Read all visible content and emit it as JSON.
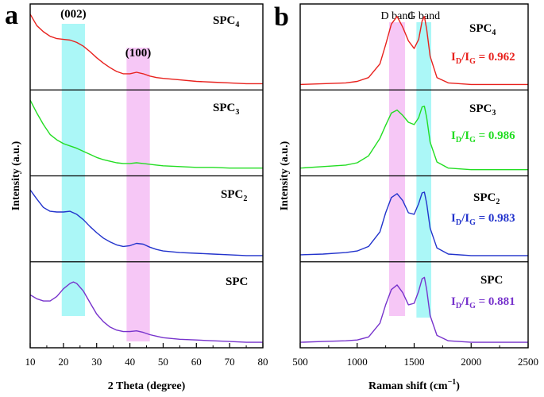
{
  "chart_data": [
    {
      "panel": "a",
      "type": "line",
      "xlabel": "2 Theta (degree)",
      "ylabel": "Intensity (a.u.)",
      "xlim": [
        10,
        80
      ],
      "xticks": [
        "10",
        "20",
        "30",
        "40",
        "50",
        "60",
        "70",
        "80"
      ],
      "stacked": true,
      "highlight_bands": [
        {
          "label": "(002)",
          "x_range": [
            19.5,
            26.5
          ],
          "color": "#66f0f0"
        },
        {
          "label": "(100)",
          "x_range": [
            39,
            46
          ],
          "color": "#ee99ee"
        }
      ],
      "series": [
        {
          "name": "SPC4",
          "name_main": "SPC",
          "name_sub": "4",
          "color": "#e8211d",
          "x": [
            10,
            12,
            14,
            16,
            18,
            20,
            22,
            24,
            26,
            28,
            30,
            32,
            34,
            36,
            38,
            40,
            42,
            44,
            46,
            48,
            50,
            55,
            60,
            65,
            70,
            75,
            80
          ],
          "y": [
            0.95,
            0.8,
            0.72,
            0.66,
            0.63,
            0.62,
            0.61,
            0.58,
            0.53,
            0.46,
            0.38,
            0.31,
            0.25,
            0.2,
            0.17,
            0.17,
            0.19,
            0.17,
            0.14,
            0.12,
            0.11,
            0.09,
            0.07,
            0.06,
            0.05,
            0.04,
            0.04
          ]
        },
        {
          "name": "SPC3",
          "name_main": "SPC",
          "name_sub": "3",
          "color": "#22dd22",
          "x": [
            10,
            12,
            14,
            16,
            18,
            20,
            22,
            24,
            26,
            28,
            30,
            32,
            34,
            36,
            38,
            40,
            42,
            44,
            46,
            48,
            50,
            55,
            60,
            65,
            70,
            75,
            80
          ],
          "y": [
            0.95,
            0.78,
            0.63,
            0.5,
            0.43,
            0.38,
            0.35,
            0.32,
            0.28,
            0.24,
            0.2,
            0.17,
            0.15,
            0.13,
            0.12,
            0.12,
            0.13,
            0.12,
            0.11,
            0.1,
            0.09,
            0.08,
            0.07,
            0.07,
            0.06,
            0.06,
            0.06
          ]
        },
        {
          "name": "SPC2",
          "name_main": "SPC",
          "name_sub": "2",
          "color": "#2233cc",
          "x": [
            10,
            12,
            14,
            16,
            18,
            20,
            22,
            24,
            26,
            28,
            30,
            32,
            34,
            36,
            38,
            40,
            42,
            44,
            46,
            48,
            50,
            55,
            60,
            65,
            70,
            75,
            80
          ],
          "y": [
            0.9,
            0.78,
            0.67,
            0.62,
            0.61,
            0.61,
            0.62,
            0.58,
            0.51,
            0.42,
            0.34,
            0.27,
            0.22,
            0.18,
            0.16,
            0.17,
            0.2,
            0.19,
            0.15,
            0.12,
            0.1,
            0.08,
            0.07,
            0.06,
            0.05,
            0.04,
            0.04
          ]
        },
        {
          "name": "SPC",
          "name_main": "SPC",
          "name_sub": "",
          "color": "#7733cc",
          "x": [
            10,
            12,
            14,
            16,
            18,
            20,
            22,
            23,
            24,
            26,
            28,
            30,
            32,
            34,
            36,
            38,
            40,
            42,
            44,
            46,
            48,
            50,
            55,
            60,
            65,
            70,
            75,
            80
          ],
          "y": [
            0.65,
            0.6,
            0.57,
            0.57,
            0.63,
            0.73,
            0.8,
            0.82,
            0.8,
            0.7,
            0.55,
            0.4,
            0.3,
            0.23,
            0.19,
            0.17,
            0.17,
            0.18,
            0.16,
            0.13,
            0.11,
            0.09,
            0.07,
            0.06,
            0.05,
            0.04,
            0.03,
            0.03
          ]
        }
      ]
    },
    {
      "panel": "b",
      "type": "line",
      "xlabel": "Raman shift (cm−1)",
      "xlabel_main": "Raman shift (cm",
      "xlabel_sup": "−1",
      "xlabel_end": ")",
      "ylabel": "Intensity (a.u.)",
      "xlim": [
        500,
        2500
      ],
      "xticks": [
        "500",
        "1000",
        "1500",
        "2000",
        "2500"
      ],
      "stacked": true,
      "highlight_bands": [
        {
          "label": "D band",
          "x_range": [
            1280,
            1420
          ],
          "color": "#ee99ee"
        },
        {
          "label": "G band",
          "x_range": [
            1520,
            1650
          ],
          "color": "#66f0f0"
        }
      ],
      "series": [
        {
          "name": "SPC4",
          "name_main": "SPC",
          "name_sub": "4",
          "color": "#e8211d",
          "ratio": "0.962",
          "x": [
            500,
            700,
            900,
            1000,
            1100,
            1200,
            1250,
            1300,
            1350,
            1400,
            1450,
            1500,
            1540,
            1570,
            1590,
            1610,
            1640,
            1700,
            1800,
            2000,
            2200,
            2500
          ],
          "y": [
            0.03,
            0.04,
            0.05,
            0.07,
            0.12,
            0.3,
            0.55,
            0.82,
            0.92,
            0.78,
            0.6,
            0.5,
            0.62,
            0.86,
            0.92,
            0.75,
            0.4,
            0.12,
            0.05,
            0.03,
            0.03,
            0.03
          ]
        },
        {
          "name": "SPC3",
          "name_main": "SPC",
          "name_sub": "3",
          "color": "#22dd22",
          "ratio": "0.986",
          "x": [
            500,
            700,
            900,
            1000,
            1100,
            1200,
            1250,
            1300,
            1350,
            1400,
            1450,
            1500,
            1540,
            1570,
            1590,
            1610,
            1640,
            1700,
            1800,
            2000,
            2200,
            2500
          ],
          "y": [
            0.06,
            0.08,
            0.1,
            0.13,
            0.22,
            0.45,
            0.62,
            0.78,
            0.82,
            0.75,
            0.66,
            0.63,
            0.72,
            0.86,
            0.87,
            0.72,
            0.4,
            0.14,
            0.06,
            0.04,
            0.04,
            0.04
          ]
        },
        {
          "name": "SPC2",
          "name_main": "SPC",
          "name_sub": "2",
          "color": "#2233cc",
          "ratio": "0.983",
          "x": [
            500,
            700,
            900,
            1000,
            1100,
            1200,
            1250,
            1300,
            1350,
            1400,
            1450,
            1500,
            1540,
            1570,
            1590,
            1610,
            1640,
            1700,
            1800,
            2000,
            2200,
            2500
          ],
          "y": [
            0.05,
            0.06,
            0.08,
            0.1,
            0.16,
            0.35,
            0.6,
            0.8,
            0.85,
            0.76,
            0.6,
            0.58,
            0.72,
            0.86,
            0.87,
            0.72,
            0.4,
            0.14,
            0.06,
            0.04,
            0.04,
            0.04
          ]
        },
        {
          "name": "SPC",
          "name_main": "SPC",
          "name_sub": "",
          "color": "#7733cc",
          "ratio": "0.881",
          "x": [
            500,
            700,
            900,
            1000,
            1100,
            1200,
            1250,
            1300,
            1350,
            1400,
            1450,
            1500,
            1540,
            1570,
            1590,
            1610,
            1640,
            1700,
            1800,
            2000,
            2200,
            2500
          ],
          "y": [
            0.03,
            0.04,
            0.05,
            0.06,
            0.1,
            0.28,
            0.52,
            0.72,
            0.78,
            0.68,
            0.52,
            0.54,
            0.7,
            0.86,
            0.88,
            0.72,
            0.38,
            0.12,
            0.05,
            0.03,
            0.03,
            0.03
          ]
        }
      ]
    }
  ],
  "labels": {
    "panel_a": "a",
    "panel_b": "b",
    "ratio_prefix_main": "I",
    "ratio_prefix_subD": "D",
    "ratio_slash": "/I",
    "ratio_prefix_subG": "G",
    "ratio_eq": " = "
  }
}
